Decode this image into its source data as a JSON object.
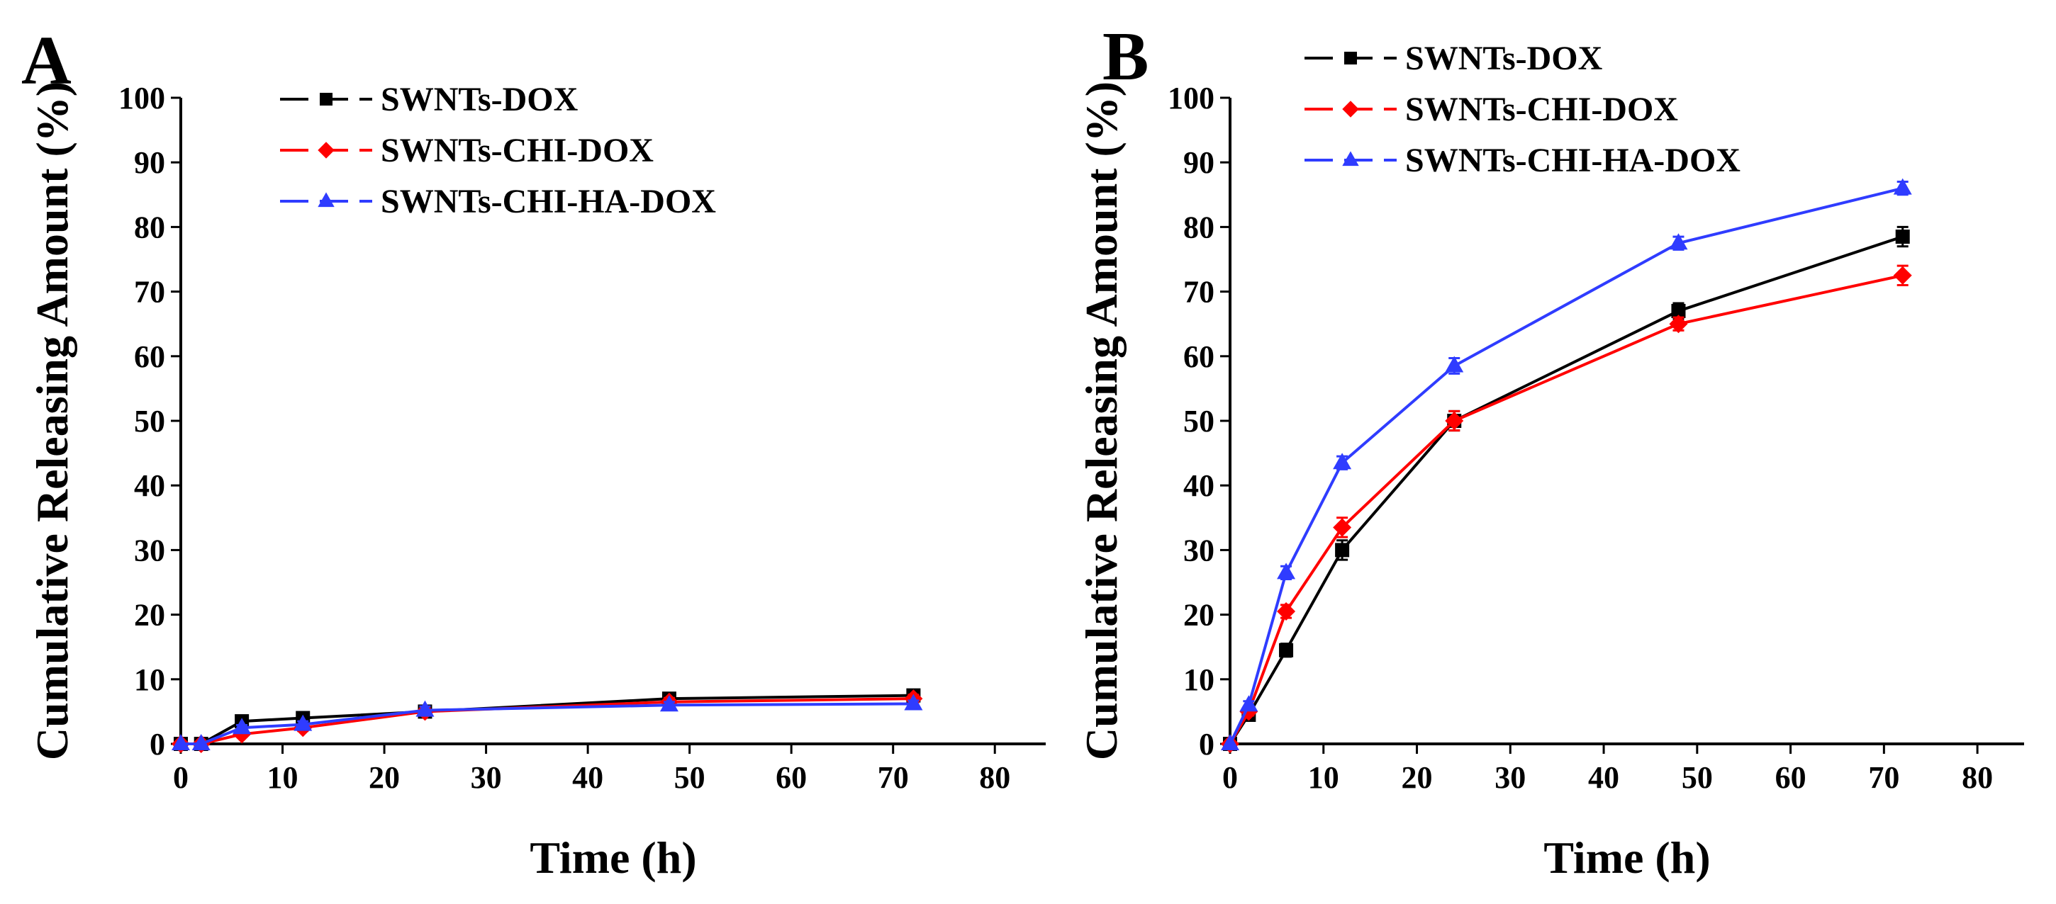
{
  "chart_data": [
    {
      "type": "line",
      "panel": "A",
      "xlabel": "Time (h)",
      "ylabel": "Cumulative Releasing Amount (%)",
      "xlim": [
        0,
        85
      ],
      "ylim": [
        0,
        100
      ],
      "xticks": [
        "0",
        "10",
        "20",
        "30",
        "40",
        "50",
        "60",
        "70",
        "80"
      ],
      "yticks": [
        "0",
        "10",
        "20",
        "30",
        "40",
        "50",
        "60",
        "70",
        "80",
        "90",
        "100"
      ],
      "legend": "top-left",
      "series": [
        {
          "name": "SWNTs-DOX",
          "color": "#000000",
          "marker": "square",
          "x": [
            0,
            2,
            6,
            12,
            24,
            48,
            72
          ],
          "y": [
            0,
            0,
            3.5,
            4,
            5,
            7,
            7.5
          ],
          "err": [
            0,
            0,
            0.5,
            0.5,
            0.6,
            0.7,
            0.6
          ]
        },
        {
          "name": "SWNTs-CHI-DOX",
          "color": "#ff0000",
          "marker": "diamond",
          "x": [
            0,
            2,
            6,
            12,
            24,
            48,
            72
          ],
          "y": [
            0,
            0,
            1.5,
            2.5,
            5,
            6.5,
            7
          ],
          "err": [
            0,
            0,
            0.4,
            0.5,
            0.5,
            0.6,
            0.6
          ]
        },
        {
          "name": "SWNTs-CHI-HA-DOX",
          "color": "#2f3cff",
          "marker": "triangle",
          "x": [
            0,
            2,
            6,
            12,
            24,
            48,
            72
          ],
          "y": [
            0,
            0,
            2.5,
            3,
            5.2,
            6,
            6.2
          ],
          "err": [
            0,
            0,
            0.4,
            0.5,
            0.6,
            0.5,
            0.5
          ]
        }
      ]
    },
    {
      "type": "line",
      "panel": "B",
      "xlabel": "Time (h)",
      "ylabel": "Cumulative Releasing Amount (%)",
      "xlim": [
        0,
        85
      ],
      "ylim": [
        0,
        100
      ],
      "xticks": [
        "0",
        "10",
        "20",
        "30",
        "40",
        "50",
        "60",
        "70",
        "80"
      ],
      "yticks": [
        "0",
        "10",
        "20",
        "30",
        "40",
        "50",
        "60",
        "70",
        "80",
        "90",
        "100"
      ],
      "legend": "top-left",
      "series": [
        {
          "name": "SWNTs-DOX",
          "color": "#000000",
          "marker": "square",
          "x": [
            0,
            2,
            6,
            12,
            24,
            48,
            72
          ],
          "y": [
            0,
            4.5,
            14.5,
            30,
            50,
            67,
            78.5
          ],
          "err": [
            0,
            0.6,
            1,
            1.5,
            1.5,
            1.2,
            1.5
          ]
        },
        {
          "name": "SWNTs-CHI-DOX",
          "color": "#ff0000",
          "marker": "diamond",
          "x": [
            0,
            2,
            6,
            12,
            24,
            48,
            72
          ],
          "y": [
            0,
            5,
            20.5,
            33.5,
            50,
            65,
            72.5
          ],
          "err": [
            0,
            0.6,
            1,
            1.5,
            1.5,
            1,
            1.5
          ]
        },
        {
          "name": "SWNTs-CHI-HA-DOX",
          "color": "#2f3cff",
          "marker": "triangle",
          "x": [
            0,
            2,
            6,
            12,
            24,
            48,
            72
          ],
          "y": [
            0,
            6,
            26.5,
            43.5,
            58.5,
            77.5,
            86
          ],
          "err": [
            0,
            0.6,
            1,
            1,
            1.2,
            1,
            1
          ]
        }
      ]
    }
  ]
}
